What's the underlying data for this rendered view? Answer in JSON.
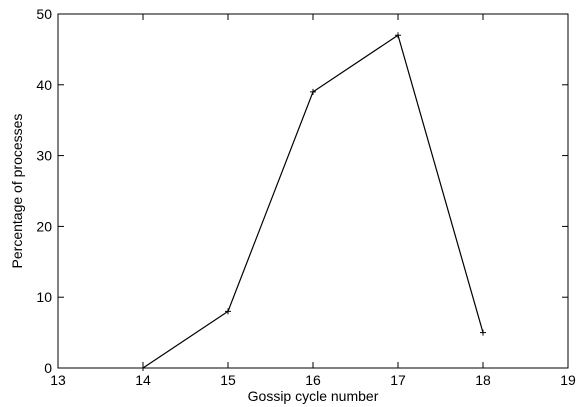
{
  "chart_data": {
    "type": "line",
    "xlabel": "Gossip cycle number",
    "ylabel": "Percentage of processes",
    "xlim": [
      13,
      19
    ],
    "ylim": [
      0,
      50
    ],
    "x_ticks": [
      13,
      14,
      15,
      16,
      17,
      18,
      19
    ],
    "y_ticks": [
      0,
      10,
      20,
      30,
      40,
      50
    ],
    "grid": false,
    "legend": "none",
    "series": [
      {
        "x": [
          14,
          15,
          16,
          17,
          18
        ],
        "y": [
          0,
          8,
          39,
          47,
          5
        ],
        "color": "#000000",
        "marker": "plus"
      }
    ]
  }
}
